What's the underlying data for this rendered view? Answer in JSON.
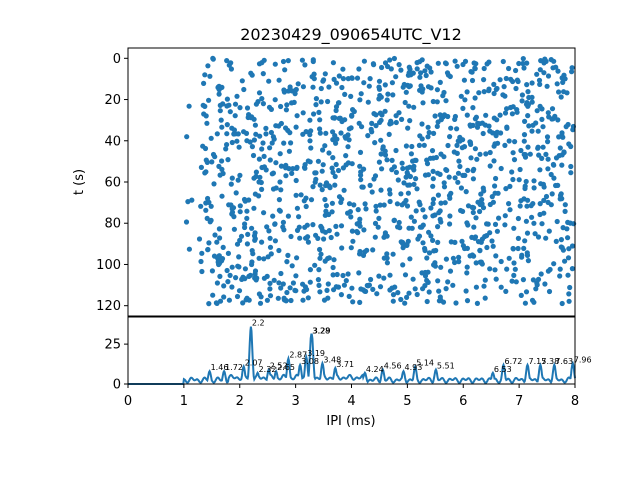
{
  "chart_data": [
    {
      "type": "scatter",
      "title": "20230429_090654UTC_V12",
      "xlabel": "",
      "ylabel": "t (s)",
      "xlim": [
        0,
        8
      ],
      "ylim": [
        125,
        -5
      ],
      "y_inverted": true,
      "yticks": [
        0,
        20,
        40,
        60,
        80,
        100,
        120
      ],
      "x_range_of_points": [
        1.0,
        8.0
      ],
      "marker_color": "#1f77b4",
      "grid": false,
      "legend": "none"
    },
    {
      "type": "line",
      "xlabel": "IPI (ms)",
      "ylabel": "",
      "xlim": [
        0,
        8
      ],
      "ylim": [
        0,
        42
      ],
      "xticks": [
        0,
        1,
        2,
        3,
        4,
        5,
        6,
        7,
        8
      ],
      "yticks": [
        0,
        25
      ],
      "line_color": "#1f77b4",
      "grid": false,
      "legend": "none",
      "peaks": [
        {
          "x": 1.46,
          "y": 8,
          "label": "1.46"
        },
        {
          "x": 1.72,
          "y": 8,
          "label": "1.72"
        },
        {
          "x": 2.07,
          "y": 11,
          "label": "2.07"
        },
        {
          "x": 2.2,
          "y": 36,
          "label": "2.2"
        },
        {
          "x": 2.32,
          "y": 7,
          "label": "2.32"
        },
        {
          "x": 2.52,
          "y": 9,
          "label": "2.52"
        },
        {
          "x": 2.65,
          "y": 8,
          "label": "2.65"
        },
        {
          "x": 2.87,
          "y": 16,
          "label": "2.87"
        },
        {
          "x": 3.08,
          "y": 12,
          "label": "3.08"
        },
        {
          "x": 3.19,
          "y": 17,
          "label": "3.19"
        },
        {
          "x": 3.28,
          "y": 31,
          "label": "3.28"
        },
        {
          "x": 3.29,
          "y": 31,
          "label": "3.29"
        },
        {
          "x": 3.48,
          "y": 13,
          "label": "3.48"
        },
        {
          "x": 3.71,
          "y": 10,
          "label": "3.71"
        },
        {
          "x": 4.24,
          "y": 7,
          "label": "4.24"
        },
        {
          "x": 4.56,
          "y": 9,
          "label": "4.56"
        },
        {
          "x": 4.93,
          "y": 8,
          "label": "4.93"
        },
        {
          "x": 5.14,
          "y": 11,
          "label": "5.14"
        },
        {
          "x": 5.51,
          "y": 9,
          "label": "5.51"
        },
        {
          "x": 6.53,
          "y": 7,
          "label": "6.53"
        },
        {
          "x": 6.72,
          "y": 12,
          "label": "6.72"
        },
        {
          "x": 7.15,
          "y": 12,
          "label": "7.15"
        },
        {
          "x": 7.38,
          "y": 12,
          "label": "7.38"
        },
        {
          "x": 7.63,
          "y": 12,
          "label": "7.63"
        },
        {
          "x": 7.96,
          "y": 13,
          "label": "7.96"
        }
      ]
    }
  ]
}
